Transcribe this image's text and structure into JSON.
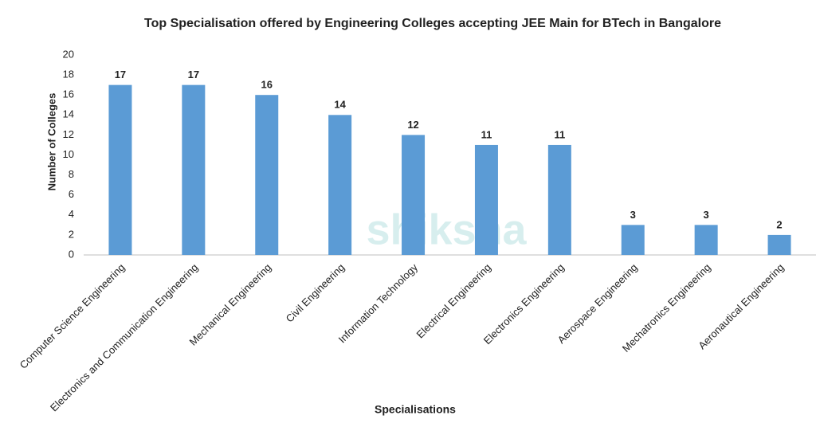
{
  "chart_data": {
    "type": "bar",
    "title": "Top Specialisation offered by Engineering Colleges accepting JEE Main for BTech in Bangalore",
    "x_label": "Specialisations",
    "y_label": "Number of Colleges",
    "watermark": "shiksha",
    "categories": [
      "Computer Science Engineering",
      "Electronics and Communication Engineering",
      "Mechanical Engineering",
      "Civil Engineering",
      "Information Technology",
      "Electrical Engineering",
      "Electronics Engineering",
      "Aerospace Engineering",
      "Mechatronics Engineering",
      "Aeronautical Engineering"
    ],
    "values": [
      17,
      17,
      16,
      14,
      12,
      11,
      11,
      3,
      3,
      2
    ],
    "color": "#5b9bd5",
    "ylim": [
      0,
      20
    ],
    "yticks": [
      0,
      2,
      4,
      6,
      8,
      10,
      12,
      14,
      16,
      18,
      20
    ],
    "grid": false
  }
}
